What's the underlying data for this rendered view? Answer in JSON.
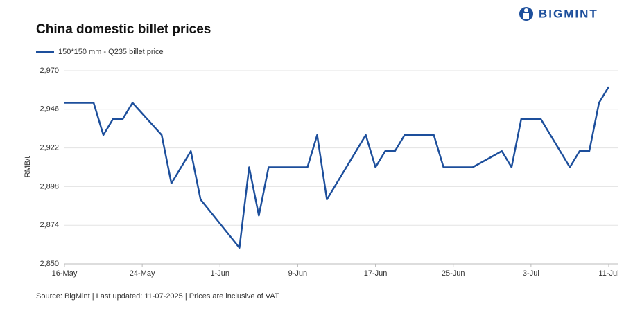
{
  "brand": "BIGMINT",
  "chart_data": {
    "type": "line",
    "title": "China domestic billet prices",
    "ylabel": "RMB/t",
    "source": "Source: BigMint | Last updated: 11-07-2025 | Prices are inclusive of VAT",
    "x": [
      "16-May",
      "19-May",
      "20-May",
      "21-May",
      "22-May",
      "23-May",
      "26-May",
      "27-May",
      "29-May",
      "30-May",
      "3-Jun",
      "4-Jun",
      "5-Jun",
      "6-Jun",
      "10-Jun",
      "11-Jun",
      "12-Jun",
      "16-Jun",
      "17-Jun",
      "18-Jun",
      "19-Jun",
      "20-Jun",
      "23-Jun",
      "24-Jun",
      "27-Jun",
      "30-Jun",
      "1-Jul",
      "2-Jul",
      "4-Jul",
      "7-Jul",
      "8-Jul",
      "9-Jul",
      "10-Jul",
      "11-Jul"
    ],
    "series": [
      {
        "name": "150*150 mm - Q235 billet price",
        "color": "#1d4f9c",
        "values": [
          2950,
          2950,
          2930,
          2940,
          2940,
          2950,
          2930,
          2900,
          2920,
          2890,
          2860,
          2910,
          2880,
          2910,
          2910,
          2930,
          2890,
          2930,
          2910,
          2920,
          2920,
          2930,
          2930,
          2910,
          2910,
          2920,
          2910,
          2940,
          2940,
          2910,
          2920,
          2920,
          2950,
          2960
        ]
      }
    ],
    "xlim": [
      "16-May",
      "11-Jul"
    ],
    "xticks": [
      "16-May",
      "24-May",
      "1-Jun",
      "9-Jun",
      "17-Jun",
      "25-Jun",
      "3-Jul",
      "11-Jul"
    ],
    "ylim": [
      2850,
      2970
    ],
    "yticks": [
      {
        "value": 2850,
        "label": "2,850"
      },
      {
        "value": 2874,
        "label": "2,874"
      },
      {
        "value": 2898,
        "label": "2,898"
      },
      {
        "value": 2922,
        "label": "2,922"
      },
      {
        "value": 2946,
        "label": "2,946"
      },
      {
        "value": 2970,
        "label": "2,970"
      }
    ],
    "grid": true,
    "legend": "top-left"
  }
}
